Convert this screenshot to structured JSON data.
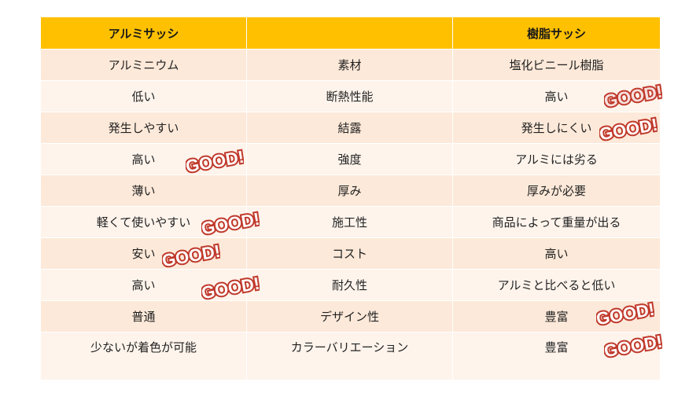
{
  "header": {
    "col1": "アルミサッシ",
    "col2": "",
    "col3": "樹脂サッシ"
  },
  "rows": [
    {
      "aluminum": "アルミニウム",
      "category": "素材",
      "resin": "塩化ビニール樹脂"
    },
    {
      "aluminum": "低い",
      "category": "断熱性能",
      "resin": "高い"
    },
    {
      "aluminum": "発生しやすい",
      "category": "結露",
      "resin": "発生しにくい"
    },
    {
      "aluminum": "高い",
      "category": "強度",
      "resin": "アルミには劣る"
    },
    {
      "aluminum": "薄い",
      "category": "厚み",
      "resin": "厚みが必要"
    },
    {
      "aluminum": "軽くて使いやすい",
      "category": "施工性",
      "resin": "商品によって重量が出る"
    },
    {
      "aluminum": "安い",
      "category": "コスト",
      "resin": "高い"
    },
    {
      "aluminum": "高い",
      "category": "耐久性",
      "resin": "アルミと比べると低い"
    },
    {
      "aluminum": "普通",
      "category": "デザイン性",
      "resin": "豊富"
    },
    {
      "aluminum": "少ないが着色が可能",
      "category": "カラーバリエーション",
      "resin": "豊富"
    }
  ],
  "stamp": {
    "text": "GOOD!",
    "color": "#c0392b"
  }
}
